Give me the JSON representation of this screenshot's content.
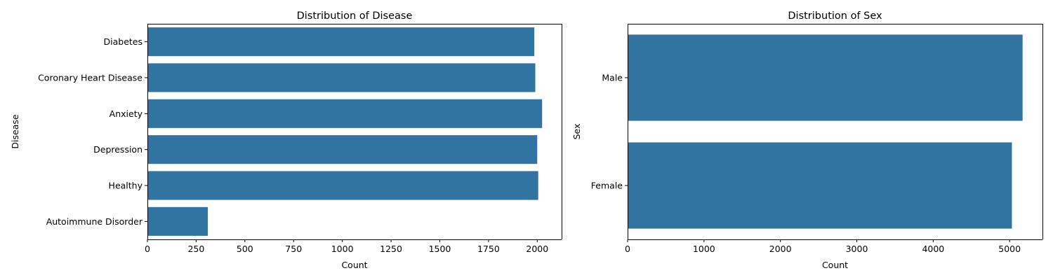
{
  "chart_data": [
    {
      "type": "bar",
      "orientation": "horizontal",
      "title": "Distribution of Disease",
      "xlabel": "Count",
      "ylabel": "Disease",
      "categories": [
        "Diabetes",
        "Coronary Heart Disease",
        "Anxiety",
        "Depression",
        "Healthy",
        "Autoimmune Disorder"
      ],
      "values": [
        1985,
        1990,
        2025,
        2000,
        2005,
        310
      ],
      "xlim": [
        0,
        2125
      ],
      "xticks": [
        0,
        250,
        500,
        750,
        1000,
        1250,
        1500,
        1750,
        2000
      ],
      "xtick_labels": [
        "0",
        "250",
        "500",
        "750",
        "1000",
        "1250",
        "1500",
        "1750",
        "2000"
      ],
      "color": "#3274a1",
      "grid": false
    },
    {
      "type": "bar",
      "orientation": "horizontal",
      "title": "Distribution of Sex",
      "xlabel": "Count",
      "ylabel": "Sex",
      "categories": [
        "Male",
        "Female"
      ],
      "values": [
        5170,
        5030
      ],
      "xlim": [
        0,
        5430
      ],
      "xticks": [
        0,
        1000,
        2000,
        3000,
        4000,
        5000
      ],
      "xtick_labels": [
        "0",
        "1000",
        "2000",
        "3000",
        "4000",
        "5000"
      ],
      "color": "#3274a1",
      "grid": false
    }
  ]
}
